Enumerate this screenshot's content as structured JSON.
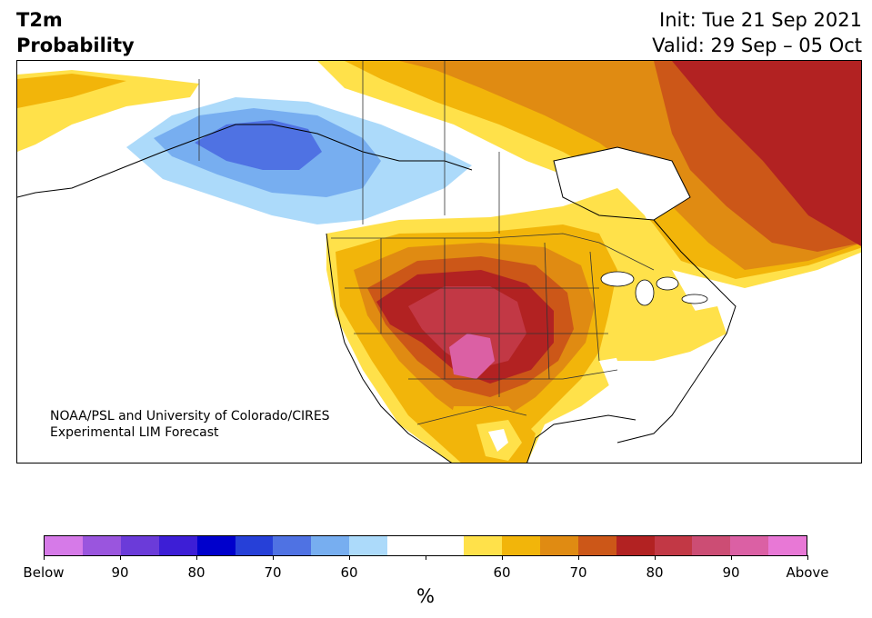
{
  "header": {
    "title_line1": "T2m",
    "title_line2": "Probability",
    "init": "Init: Tue 21 Sep 2021",
    "valid": "Valid: 29 Sep – 05 Oct"
  },
  "credit": {
    "line1": "NOAA/PSL and University of Colorado/CIRES",
    "line2": "Experimental LIM Forecast"
  },
  "colorbar": {
    "colors": [
      "#d67ae8",
      "#9a55de",
      "#6b3bd9",
      "#3d1ed6",
      "#0000cc",
      "#2640d8",
      "#4f72e3",
      "#77aef0",
      "#acdafa",
      "#ffffff",
      "#ffffff",
      "#ffe14a",
      "#f2b50a",
      "#e08b12",
      "#cc5718",
      "#b22222",
      "#c23845",
      "#cc4d74",
      "#db60a4",
      "#e878d6"
    ],
    "labels": [
      "Below",
      "90",
      "80",
      "70",
      "60",
      "",
      "60",
      "70",
      "80",
      "90",
      "Above"
    ],
    "unit": "%"
  },
  "map": {
    "domain": "North America",
    "colors": {
      "land_white": "#ffffff",
      "p60_warm": "#ffe14a",
      "p70_warm": "#f2b50a",
      "p75_warm": "#e08b12",
      "p80_warm": "#cc5718",
      "p85_warm": "#b22222",
      "p90_warm": "#c23845",
      "p95_warm": "#db60a4",
      "p60_cold": "#acdafa",
      "p70_cold": "#77aef0",
      "p80_cold": "#4f72e3"
    }
  }
}
